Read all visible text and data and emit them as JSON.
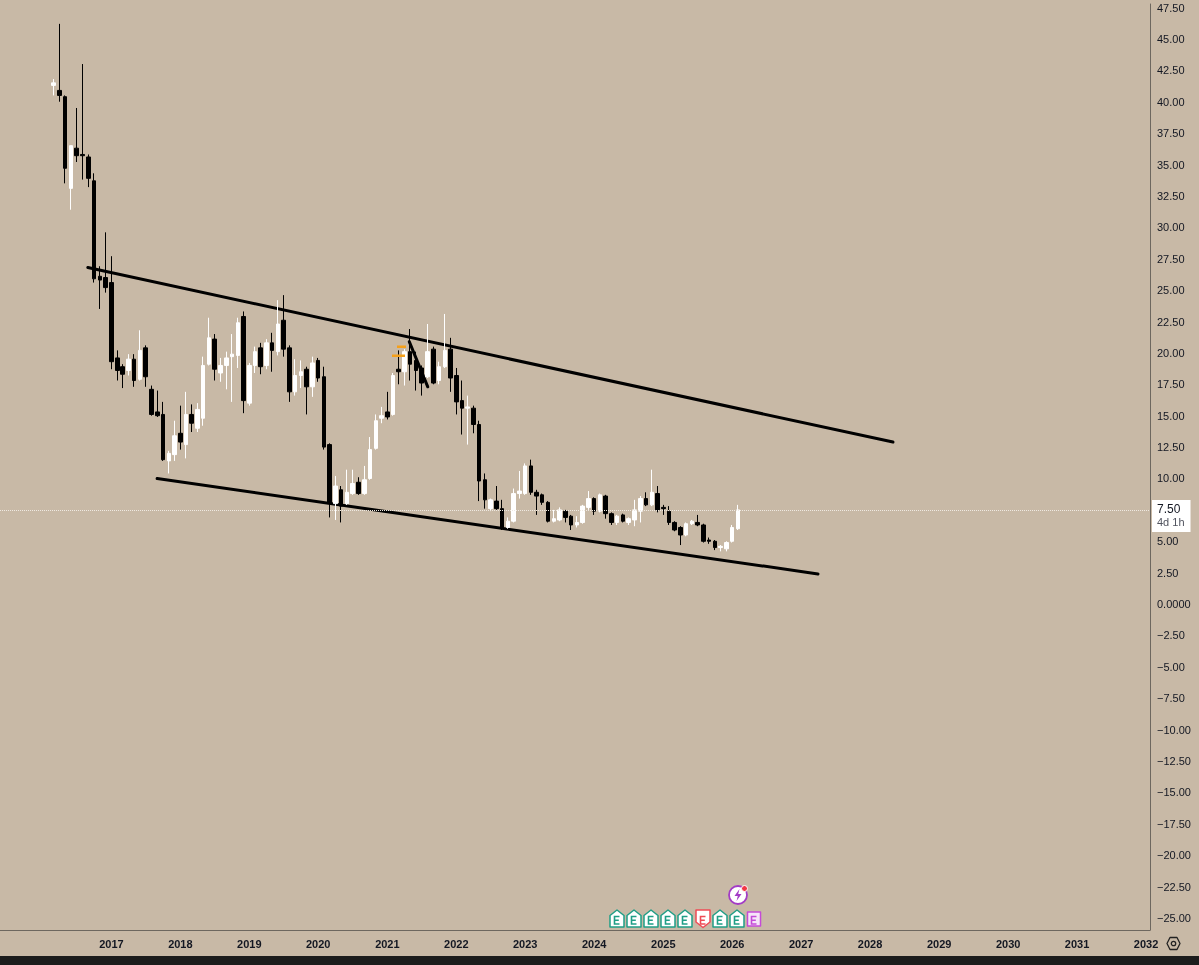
{
  "chart_data": {
    "type": "candlestick",
    "x": [
      "2016-03",
      "2016-04",
      "2016-05",
      "2016-06",
      "2016-07",
      "2016-08",
      "2016-09",
      "2016-10",
      "2016-11",
      "2016-12",
      "2017-01",
      "2017-02",
      "2017-03",
      "2017-04",
      "2017-05",
      "2017-06",
      "2017-07",
      "2017-08",
      "2017-09",
      "2017-10",
      "2017-11",
      "2017-12",
      "2018-01",
      "2018-02",
      "2018-03",
      "2018-04",
      "2018-05",
      "2018-06",
      "2018-07",
      "2018-08",
      "2018-09",
      "2018-10",
      "2018-11",
      "2018-12",
      "2019-01",
      "2019-02",
      "2019-03",
      "2019-04",
      "2019-05",
      "2019-06",
      "2019-07",
      "2019-08",
      "2019-09",
      "2019-10",
      "2019-11",
      "2019-12",
      "2020-01",
      "2020-02",
      "2020-03",
      "2020-04",
      "2020-05",
      "2020-06",
      "2020-07",
      "2020-08",
      "2020-09",
      "2020-10",
      "2020-11",
      "2020-12",
      "2021-01",
      "2021-02",
      "2021-03",
      "2021-04",
      "2021-05",
      "2021-06",
      "2021-07",
      "2021-08",
      "2021-09",
      "2021-10",
      "2021-11",
      "2021-12",
      "2022-01",
      "2022-02",
      "2022-03",
      "2022-04",
      "2022-05",
      "2022-06",
      "2022-07",
      "2022-08",
      "2022-09",
      "2022-10",
      "2022-11",
      "2022-12",
      "2023-01",
      "2023-02",
      "2023-03",
      "2023-04",
      "2023-05",
      "2023-06",
      "2023-07",
      "2023-08",
      "2023-09",
      "2023-10",
      "2023-11",
      "2023-12",
      "2024-01",
      "2024-02",
      "2024-03",
      "2024-04",
      "2024-05",
      "2024-06",
      "2024-07",
      "2024-08",
      "2024-09",
      "2024-10",
      "2024-11",
      "2024-12",
      "2025-01",
      "2025-02",
      "2025-03",
      "2025-04",
      "2025-05",
      "2025-06",
      "2025-07",
      "2025-08",
      "2025-09",
      "2025-10",
      "2025-11",
      "2025-12",
      "2026-01",
      "2026-02"
    ],
    "ohlc": [
      [
        41.3,
        41.8,
        40.5,
        41.5
      ],
      [
        40.9,
        46.2,
        40.0,
        40.5
      ],
      [
        40.4,
        40.5,
        33.5,
        34.7
      ],
      [
        33.1,
        36.5,
        31.4,
        36.5
      ],
      [
        36.3,
        39.5,
        35.2,
        35.7
      ],
      [
        35.8,
        43.0,
        33.8,
        35.7
      ],
      [
        35.6,
        35.8,
        33.2,
        33.9
      ],
      [
        33.7,
        34.3,
        25.6,
        25.9
      ],
      [
        26.1,
        26.9,
        23.5,
        25.8
      ],
      [
        26.0,
        29.6,
        24.8,
        25.2
      ],
      [
        25.6,
        27.7,
        18.7,
        19.3
      ],
      [
        19.6,
        20.2,
        17.8,
        18.6
      ],
      [
        18.9,
        19.1,
        17.2,
        18.3
      ],
      [
        18.6,
        19.9,
        18.2,
        19.5
      ],
      [
        19.5,
        19.9,
        17.3,
        17.8
      ],
      [
        17.9,
        21.8,
        17.8,
        20.2
      ],
      [
        20.4,
        20.6,
        17.3,
        18.1
      ],
      [
        17.1,
        17.4,
        15.0,
        15.1
      ],
      [
        15.3,
        17.0,
        14.9,
        15.0
      ],
      [
        15.1,
        16.1,
        11.4,
        11.5
      ],
      [
        11.4,
        12.2,
        10.4,
        12.0
      ],
      [
        11.9,
        14.6,
        11.4,
        13.4
      ],
      [
        13.6,
        15.8,
        12.3,
        12.9
      ],
      [
        12.7,
        16.9,
        11.6,
        15.1
      ],
      [
        15.1,
        15.9,
        13.7,
        14.4
      ],
      [
        14.0,
        16.0,
        13.7,
        15.5
      ],
      [
        14.8,
        19.7,
        14.2,
        19.0
      ],
      [
        19.1,
        22.8,
        19.0,
        21.2
      ],
      [
        21.1,
        21.5,
        17.8,
        18.7
      ],
      [
        18.4,
        19.6,
        17.7,
        19.0
      ],
      [
        19.0,
        20.1,
        17.1,
        19.6
      ],
      [
        19.7,
        21.5,
        16.1,
        19.9
      ],
      [
        19.8,
        22.8,
        18.8,
        22.4
      ],
      [
        22.9,
        23.3,
        15.2,
        16.2
      ],
      [
        16.0,
        19.2,
        15.8,
        19.0
      ],
      [
        19.0,
        20.5,
        18.4,
        20.1
      ],
      [
        20.4,
        20.8,
        18.3,
        18.9
      ],
      [
        19.0,
        21.1,
        18.7,
        20.8
      ],
      [
        20.8,
        21.6,
        18.5,
        20.2
      ],
      [
        20.1,
        24.2,
        19.8,
        22.3
      ],
      [
        22.6,
        24.6,
        19.7,
        20.3
      ],
      [
        20.4,
        20.6,
        16.1,
        16.9
      ],
      [
        16.9,
        19.5,
        16.6,
        18.2
      ],
      [
        18.2,
        19.4,
        17.2,
        18.5
      ],
      [
        18.7,
        18.9,
        15.1,
        17.3
      ],
      [
        17.3,
        19.7,
        16.5,
        19.2
      ],
      [
        19.4,
        19.6,
        17.7,
        18.0
      ],
      [
        18.1,
        18.9,
        12.3,
        12.5
      ],
      [
        12.7,
        12.8,
        6.9,
        8.0
      ],
      [
        8.0,
        10.2,
        6.7,
        9.4
      ],
      [
        9.1,
        9.4,
        6.5,
        7.8
      ],
      [
        8.0,
        10.7,
        7.9,
        8.9
      ],
      [
        8.8,
        10.7,
        8.7,
        9.6
      ],
      [
        9.7,
        10.1,
        8.7,
        8.8
      ],
      [
        8.8,
        11.0,
        8.7,
        9.9
      ],
      [
        10.0,
        13.3,
        9.9,
        12.3
      ],
      [
        12.4,
        15.1,
        12.3,
        14.6
      ],
      [
        14.8,
        15.7,
        14.4,
        15.0
      ],
      [
        15.3,
        16.9,
        14.7,
        14.9
      ],
      [
        15.1,
        18.4,
        15.0,
        18.2
      ],
      [
        18.7,
        20.2,
        17.5,
        18.5
      ],
      [
        18.5,
        20.3,
        17.4,
        20.1
      ],
      [
        20.1,
        21.9,
        17.8,
        19.1
      ],
      [
        19.4,
        20.1,
        17.0,
        18.6
      ],
      [
        18.8,
        19.0,
        16.6,
        17.6
      ],
      [
        18.1,
        22.3,
        18.0,
        20.1
      ],
      [
        20.3,
        20.5,
        17.5,
        17.6
      ],
      [
        17.8,
        19.3,
        17.5,
        18.9
      ],
      [
        18.9,
        23.1,
        18.8,
        20.2
      ],
      [
        20.3,
        21.2,
        16.9,
        18.0
      ],
      [
        18.2,
        18.8,
        15.1,
        16.1
      ],
      [
        16.2,
        17.8,
        13.5,
        15.6
      ],
      [
        15.6,
        16.6,
        12.7,
        15.7
      ],
      [
        15.6,
        15.8,
        13.6,
        14.3
      ],
      [
        14.3,
        14.6,
        8.2,
        9.8
      ],
      [
        9.9,
        10.4,
        7.6,
        8.3
      ],
      [
        7.6,
        8.4,
        7.4,
        8.3
      ],
      [
        8.2,
        9.4,
        7.5,
        7.6
      ],
      [
        7.6,
        8.3,
        5.9,
        6.1
      ],
      [
        6.1,
        6.9,
        6.0,
        6.6
      ],
      [
        6.6,
        9.2,
        6.5,
        8.8
      ],
      [
        8.8,
        10.6,
        8.4,
        9.0
      ],
      [
        8.8,
        11.2,
        8.7,
        11.0
      ],
      [
        11.0,
        11.5,
        8.7,
        8.9
      ],
      [
        8.9,
        9.1,
        7.1,
        8.6
      ],
      [
        8.7,
        8.8,
        7.9,
        8.1
      ],
      [
        8.1,
        8.2,
        6.5,
        6.6
      ],
      [
        6.6,
        7.5,
        6.5,
        6.8
      ],
      [
        6.7,
        7.7,
        6.6,
        7.5
      ],
      [
        7.4,
        7.5,
        6.5,
        6.9
      ],
      [
        7.0,
        7.1,
        5.9,
        6.3
      ],
      [
        6.3,
        7.0,
        6.1,
        6.5
      ],
      [
        6.5,
        7.9,
        6.4,
        7.8
      ],
      [
        7.7,
        9.0,
        7.5,
        8.4
      ],
      [
        8.4,
        8.5,
        7.1,
        7.4
      ],
      [
        7.4,
        8.8,
        7.3,
        8.7
      ],
      [
        8.6,
        8.7,
        6.8,
        7.2
      ],
      [
        7.2,
        7.3,
        6.3,
        6.5
      ],
      [
        6.5,
        7.1,
        6.3,
        7.0
      ],
      [
        7.1,
        7.2,
        6.5,
        6.6
      ],
      [
        6.5,
        6.9,
        6.3,
        6.8
      ],
      [
        6.7,
        8.3,
        6.2,
        7.5
      ],
      [
        7.4,
        8.6,
        6.5,
        8.4
      ],
      [
        8.4,
        8.9,
        7.8,
        7.9
      ],
      [
        7.9,
        10.7,
        7.8,
        8.9
      ],
      [
        8.8,
        9.4,
        7.3,
        7.5
      ],
      [
        7.7,
        7.9,
        7.1,
        7.6
      ],
      [
        7.4,
        7.8,
        6.3,
        6.5
      ],
      [
        6.5,
        6.6,
        5.8,
        5.9
      ],
      [
        6.1,
        6.2,
        4.7,
        5.5
      ],
      [
        5.5,
        6.5,
        5.4,
        6.4
      ],
      [
        6.4,
        6.7,
        6.3,
        6.6
      ],
      [
        6.5,
        7.1,
        6.2,
        6.3
      ],
      [
        6.3,
        6.4,
        4.9,
        5.0
      ],
      [
        5.1,
        5.3,
        4.8,
        5.0
      ],
      [
        5.0,
        5.1,
        4.3,
        4.5
      ],
      [
        4.5,
        4.7,
        4.2,
        4.6
      ],
      [
        4.4,
        5.0,
        4.2,
        4.9
      ],
      [
        5.0,
        6.3,
        4.9,
        6.1
      ],
      [
        6.0,
        7.9,
        5.9,
        7.5
      ]
    ],
    "colors": [
      "#ffffff",
      "#000000",
      "#000000",
      "#ffffff",
      "#000000",
      "#000000",
      "#000000",
      "#000000",
      "#000000",
      "#000000",
      "#000000",
      "#000000",
      "#000000",
      "#ffffff",
      "#000000",
      "#ffffff",
      "#000000",
      "#000000",
      "#000000",
      "#000000",
      "#ffffff",
      "#ffffff",
      "#000000",
      "#ffffff",
      "#000000",
      "#ffffff",
      "#ffffff",
      "#ffffff",
      "#000000",
      "#ffffff",
      "#ffffff",
      "#ffffff",
      "#ffffff",
      "#000000",
      "#ffffff",
      "#ffffff",
      "#000000",
      "#ffffff",
      "#000000",
      "#ffffff",
      "#000000",
      "#000000",
      "#ffffff",
      "#ffffff",
      "#000000",
      "#ffffff",
      "#000000",
      "#000000",
      "#000000",
      "#ffffff",
      "#000000",
      "#ffffff",
      "#ffffff",
      "#000000",
      "#ffffff",
      "#ffffff",
      "#ffffff",
      "#ffffff",
      "#000000",
      "#ffffff",
      "#000000",
      "#ffffff",
      "#000000",
      "#000000",
      "#000000",
      "#ffffff",
      "#000000",
      "#ffffff",
      "#ffffff",
      "#000000",
      "#000000",
      "#000000",
      "#ffffff",
      "#000000",
      "#000000",
      "#000000",
      "#ffffff",
      "#000000",
      "#000000",
      "#ffffff",
      "#ffffff",
      "#ffffff",
      "#ffffff",
      "#000000",
      "#000000",
      "#000000",
      "#000000",
      "#ffffff",
      "#ffffff",
      "#000000",
      "#000000",
      "#ffffff",
      "#ffffff",
      "#ffffff",
      "#000000",
      "#ffffff",
      "#000000",
      "#000000",
      "#ffffff",
      "#000000",
      "#ffffff",
      "#ffffff",
      "#ffffff",
      "#000000",
      "#ffffff",
      "#000000",
      "#000000",
      "#000000",
      "#000000",
      "#000000",
      "#ffffff",
      "#ffffff",
      "#000000",
      "#000000",
      "#000000",
      "#000000",
      "#ffffff",
      "#ffffff",
      "#ffffff",
      "#ffffff"
    ],
    "series": [
      {
        "type": "line",
        "x": [
          "2016-08-29",
          "2028-05-01"
        ],
        "values": [
          26.8,
          12.9
        ],
        "color": "#000000"
      },
      {
        "type": "line",
        "x": [
          "2017-08-31",
          "2027-03-31"
        ],
        "values": [
          10.0,
          2.4
        ],
        "color": "#000000"
      },
      {
        "type": "line",
        "x": [
          "2021-04-27",
          "2021-08-03"
        ],
        "values": [
          20.9,
          17.3
        ],
        "color": "#000000"
      }
    ],
    "xlim": [
      "2015-05-22",
      "2032-01-22"
    ],
    "ylim": [
      -25.95,
      47.78
    ],
    "xticks": [
      "2017",
      "2018",
      "2019",
      "2020",
      "2021",
      "2022",
      "2023",
      "2024",
      "2025",
      "2026",
      "2027",
      "2028",
      "2029",
      "2030",
      "2031",
      "2032"
    ],
    "yticks": [
      {
        "value": 47.5,
        "label": "47.50"
      },
      {
        "value": 45,
        "label": "45.00"
      },
      {
        "value": 42.5,
        "label": "42.50"
      },
      {
        "value": 40,
        "label": "40.00"
      },
      {
        "value": 37.5,
        "label": "37.50"
      },
      {
        "value": 35,
        "label": "35.00"
      },
      {
        "value": 32.5,
        "label": "32.50"
      },
      {
        "value": 30,
        "label": "30.00"
      },
      {
        "value": 27.5,
        "label": "27.50"
      },
      {
        "value": 25,
        "label": "25.00"
      },
      {
        "value": 22.5,
        "label": "22.50"
      },
      {
        "value": 20,
        "label": "20.00"
      },
      {
        "value": 17.5,
        "label": "17.50"
      },
      {
        "value": 15,
        "label": "15.00"
      },
      {
        "value": 12.5,
        "label": "12.50"
      },
      {
        "value": 10,
        "label": "10.00"
      },
      {
        "value": 5,
        "label": "5.00"
      },
      {
        "value": 2.5,
        "label": "2.50"
      },
      {
        "value": 0,
        "label": "0.0000"
      },
      {
        "value": -2.5,
        "label": "−2.50"
      },
      {
        "value": -5,
        "label": "−5.00"
      },
      {
        "value": -7.5,
        "label": "−7.50"
      },
      {
        "value": -10,
        "label": "−10.00"
      },
      {
        "value": -12.5,
        "label": "−12.50"
      },
      {
        "value": -15,
        "label": "−15.00"
      },
      {
        "value": -17.5,
        "label": "−17.50"
      },
      {
        "value": -20,
        "label": "−20.00"
      },
      {
        "value": -22.5,
        "label": "−22.50"
      },
      {
        "value": -25,
        "label": "−25.00"
      }
    ],
    "ref_lines": [
      {
        "axis": "y",
        "value": 7.5,
        "label": "7.50",
        "color": "#efe9e1",
        "line_style": "dotted"
      }
    ],
    "annotations": [
      "4d 1h"
    ]
  }
}
